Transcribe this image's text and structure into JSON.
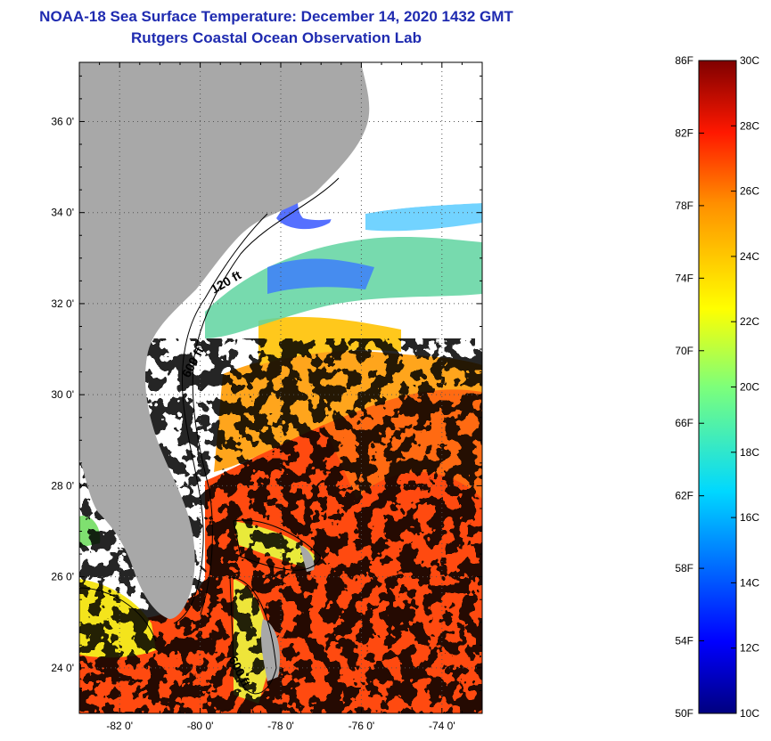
{
  "header": {
    "title": "NOAA-18 Sea Surface Temperature:  December 14, 2020 1432 GMT",
    "subtitle": "Rutgers Coastal Ocean Observation Lab"
  },
  "map": {
    "lat_ticks": [
      {
        "value": 36,
        "label": "36 0'"
      },
      {
        "value": 34,
        "label": "34 0'"
      },
      {
        "value": 32,
        "label": "32 0'"
      },
      {
        "value": 30,
        "label": "30 0'"
      },
      {
        "value": 28,
        "label": "28 0'"
      },
      {
        "value": 26,
        "label": "26 0'"
      },
      {
        "value": 24,
        "label": "24 0'"
      }
    ],
    "lon_ticks": [
      {
        "value": -82,
        "label": "-82 0'"
      },
      {
        "value": -80,
        "label": "-80 0'"
      },
      {
        "value": -78,
        "label": "-78 0'"
      },
      {
        "value": -76,
        "label": "-76 0'"
      },
      {
        "value": -74,
        "label": "-74 0'"
      }
    ],
    "lat_range": [
      23,
      37.3
    ],
    "lon_range": [
      -83,
      -73
    ],
    "contours": [
      {
        "label": "120 ft"
      },
      {
        "label": "600 ft"
      },
      {
        "label": "600 ft"
      }
    ],
    "colors": {
      "land": "#a8a8a8",
      "cloud": "#ffffff",
      "warm": "#ff4a10"
    }
  },
  "colorbar": {
    "fahrenheit": [
      "86F",
      "82F",
      "78F",
      "74F",
      "70F",
      "66F",
      "62F",
      "58F",
      "54F",
      "50F"
    ],
    "celsius": [
      "30C",
      "28C",
      "26C",
      "24C",
      "22C",
      "20C",
      "18C",
      "16C",
      "14C",
      "12C",
      "10C"
    ],
    "range_c": [
      10,
      30
    ]
  }
}
